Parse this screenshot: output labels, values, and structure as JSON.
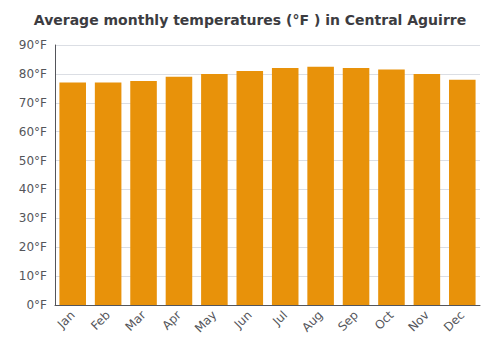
{
  "chart_data": {
    "type": "bar",
    "title": "Average monthly temperatures (°F ) in Central Aguirre",
    "categories": [
      "Jan",
      "Feb",
      "Mar",
      "Apr",
      "May",
      "Jun",
      "Jul",
      "Aug",
      "Sep",
      "Oct",
      "Nov",
      "Dec"
    ],
    "values": [
      77.0,
      77.0,
      77.5,
      79.0,
      80.0,
      81.0,
      82.0,
      82.5,
      82.0,
      81.5,
      80.0,
      78.0
    ],
    "color": "#E8920A",
    "ylim": [
      0,
      90
    ],
    "yticks": [
      {
        "value": 0,
        "label": "0°F"
      },
      {
        "value": 10,
        "label": "10°F"
      },
      {
        "value": 20,
        "label": "20°F"
      },
      {
        "value": 30,
        "label": "30°F"
      },
      {
        "value": 40,
        "label": "40°F"
      },
      {
        "value": 50,
        "label": "50°F"
      },
      {
        "value": 60,
        "label": "60°F"
      },
      {
        "value": 70,
        "label": "70°F"
      },
      {
        "value": 80,
        "label": "80°F"
      },
      {
        "value": 90,
        "label": "90°F"
      }
    ],
    "grid": true
  }
}
